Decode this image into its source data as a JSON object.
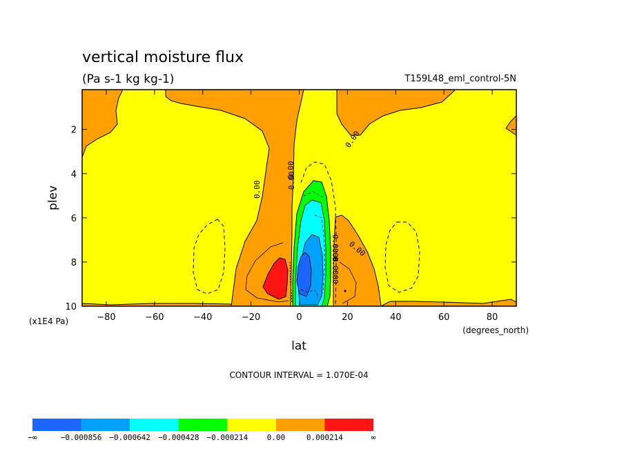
{
  "chart_data": {
    "type": "contour",
    "title": "vertical moisture flux",
    "subtitle": "(Pa s-1 kg kg-1)",
    "run_label": "T159L48_eml_control-5N",
    "xlabel": "lat",
    "xunits": "(degrees_north)",
    "ylabel": "plev",
    "yunits": "(x1E4 Pa)",
    "xlim": [
      -90,
      90
    ],
    "ylim": [
      10,
      0.2
    ],
    "x_ticks": [
      -80,
      -60,
      -40,
      -20,
      0,
      20,
      40,
      60,
      80
    ],
    "x_tick_labels": [
      "−80",
      "−60",
      "−40",
      "−20",
      "0",
      "20",
      "40",
      "60",
      "80"
    ],
    "y_ticks": [
      2,
      4,
      6,
      8,
      10
    ],
    "y_tick_labels": [
      "2",
      "4",
      "6",
      "8",
      "10"
    ],
    "contour_interval_text": "CONTOUR INTERVAL = 1.070E-04",
    "contour_labels": [
      "0.00",
      "0.00",
      "0.00",
      "0.00",
      "0.00"
    ],
    "contour_label_stack": [
      "0.0000",
      "0.0000",
      "0.0004",
      "0.0002"
    ],
    "levels": [
      -0.000856,
      -0.000642,
      -0.000428,
      -0.000214,
      0.0,
      0.000214
    ],
    "colorbar": {
      "colors": [
        "#1e64ff",
        "#00a0ff",
        "#00ffff",
        "#00ff00",
        "#ffff00",
        "#ffa000",
        "#ff1414"
      ],
      "labels": [
        "−∞",
        "−0.000856",
        "−0.000642",
        "−0.000428",
        "−0.000214",
        "0.00",
        "0.000214",
        "∞"
      ]
    },
    "features": [
      {
        "name": "positive-band",
        "lat_range": [
          -25,
          0
        ],
        "plev_range": [
          0.2,
          10
        ],
        "level": "0 to 0.000214"
      },
      {
        "name": "positive-max-south",
        "lat": -8,
        "plev": 9.0,
        "level": "> 0.000214"
      },
      {
        "name": "negative-core",
        "lat": 5,
        "plev": 8.5,
        "level": "< -0.000856"
      },
      {
        "name": "negative-lobe-sh",
        "lat": -40,
        "plev": 7.4
      },
      {
        "name": "negative-lobe-nh",
        "lat": 48,
        "plev": 7.4
      }
    ]
  },
  "colors": {
    "yellow": "#ffff00",
    "orange": "#ffa000",
    "red": "#ff1414",
    "green": "#00ff00",
    "cyan": "#00ffff",
    "lightblue": "#00a0ff",
    "blue": "#1e64ff"
  }
}
